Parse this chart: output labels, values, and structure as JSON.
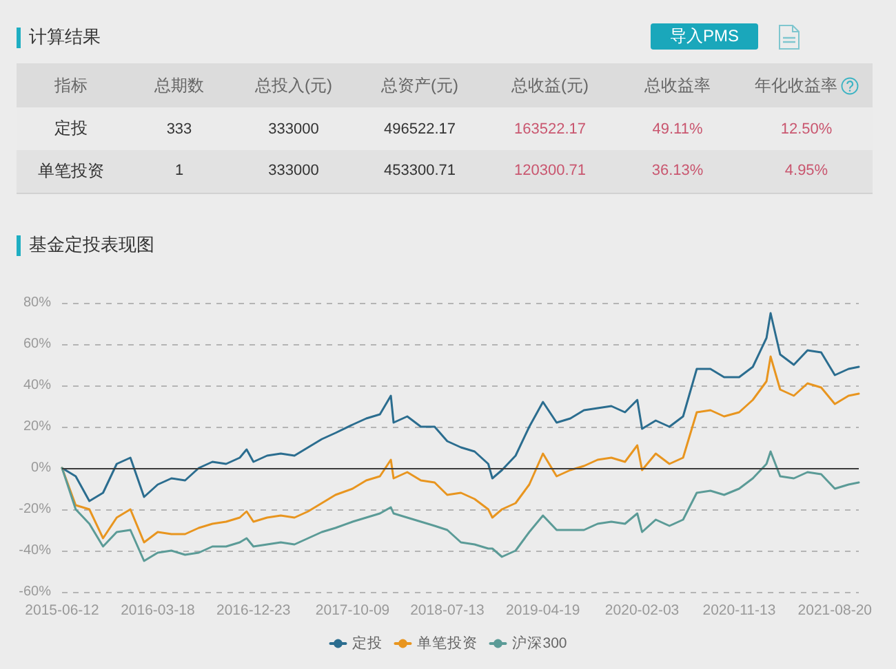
{
  "chart_data": [
    {
      "type": "other",
      "title": "计算结果",
      "annotations": [
        "导入PMS"
      ],
      "ylabel": "指标",
      "categories": [
        "总期数",
        "总投入(元)",
        "总资产(元)",
        "总收益(元)",
        "总收益率",
        "年化收益率"
      ],
      "y_categories": [
        "定投",
        "单笔投资"
      ],
      "cell_labels": [
        [
          "333",
          "333000",
          "496522.17",
          "163522.17",
          "49.11%",
          "12.50%"
        ],
        [
          "1",
          "333000",
          "453300.71",
          "120300.71",
          "36.13%",
          "4.95%"
        ]
      ]
    },
    {
      "type": "line",
      "title": "基金定投表现图",
      "x": [
        "2015-06-12",
        "2015-07-22",
        "2015-08-31",
        "2015-10-10",
        "2015-11-19",
        "2015-12-29",
        "2016-02-07",
        "2016-03-18",
        "2016-04-27",
        "2016-06-06",
        "2016-07-16",
        "2016-08-25",
        "2016-10-04",
        "2016-11-13",
        "2016-12-03",
        "2016-12-23",
        "2017-02-01",
        "2017-03-13",
        "2017-04-22",
        "2017-06-01",
        "2017-07-11",
        "2017-08-20",
        "2017-10-09",
        "2017-11-18",
        "2017-12-28",
        "2018-01-29",
        "2018-02-06",
        "2018-03-18",
        "2018-04-27",
        "2018-06-06",
        "2018-07-13",
        "2018-08-22",
        "2018-10-01",
        "2018-11-10",
        "2018-11-22",
        "2018-12-20",
        "2019-01-29",
        "2019-03-10",
        "2019-04-19",
        "2019-05-29",
        "2019-07-08",
        "2019-08-17",
        "2019-09-26",
        "2019-11-05",
        "2019-12-15",
        "2020-01-20",
        "2020-02-03",
        "2020-03-14",
        "2020-04-23",
        "2020-06-02",
        "2020-07-12",
        "2020-08-21",
        "2020-09-30",
        "2020-11-13",
        "2020-12-23",
        "2021-02-01",
        "2021-02-13",
        "2021-03-13",
        "2021-04-22",
        "2021-06-01",
        "2021-07-11",
        "2021-08-20",
        "2021-09-29",
        "2021-10-29"
      ],
      "series": [
        {
          "name": "定投",
          "color": "#2b6d8f",
          "values": [
            0,
            -4,
            -16,
            -12,
            2,
            5,
            -14,
            -8,
            -5,
            -6,
            0,
            3,
            2,
            5,
            9,
            3,
            6,
            7,
            6,
            10,
            14,
            17,
            21,
            24,
            26,
            35,
            22,
            25,
            20,
            20,
            13,
            10,
            8,
            2,
            -5,
            -1,
            6,
            20,
            32,
            22,
            24,
            28,
            29,
            30,
            27,
            33,
            19,
            23,
            20,
            25,
            48,
            48,
            44,
            44,
            49,
            63,
            75,
            55,
            50,
            57,
            56,
            45,
            48,
            49
          ]
        },
        {
          "name": "单笔投资",
          "color": "#e8951f",
          "values": [
            0,
            -18,
            -20,
            -34,
            -24,
            -20,
            -36,
            -31,
            -32,
            -32,
            -29,
            -27,
            -26,
            -24,
            -21,
            -26,
            -24,
            -23,
            -24,
            -21,
            -17,
            -13,
            -10,
            -6,
            -4,
            4,
            -5,
            -2,
            -6,
            -7,
            -13,
            -12,
            -15,
            -20,
            -24,
            -20,
            -17,
            -8,
            7,
            -4,
            -1,
            1,
            4,
            5,
            3,
            11,
            -1,
            7,
            2,
            5,
            27,
            28,
            25,
            27,
            33,
            42,
            54,
            38,
            35,
            41,
            39,
            31,
            35,
            36
          ]
        },
        {
          "name": "沪深300",
          "color": "#5b9b97",
          "values": [
            0,
            -20,
            -27,
            -38,
            -31,
            -30,
            -45,
            -41,
            -40,
            -42,
            -41,
            -38,
            -38,
            -36,
            -34,
            -38,
            -37,
            -36,
            -37,
            -34,
            -31,
            -29,
            -26,
            -24,
            -22,
            -19,
            -22,
            -24,
            -26,
            -28,
            -30,
            -36,
            -37,
            -39,
            -39,
            -43,
            -40,
            -31,
            -23,
            -30,
            -30,
            -30,
            -27,
            -26,
            -27,
            -22,
            -31,
            -25,
            -28,
            -25,
            -12,
            -11,
            -13,
            -10,
            -5,
            2,
            8,
            -4,
            -5,
            -2,
            -3,
            -10,
            -8,
            -7
          ]
        }
      ],
      "xlim": [
        "2015-06-12",
        "2021-10-29"
      ],
      "xticks": [
        "2015-06-12",
        "2016-03-18",
        "2016-12-23",
        "2017-10-09",
        "2018-07-13",
        "2019-04-19",
        "2020-02-03",
        "2020-11-13",
        "2021-08-20"
      ],
      "ylim": [
        -60,
        80
      ],
      "yticks": [
        {
          "value": -60,
          "label": "-60%"
        },
        {
          "value": -40,
          "label": "-40%"
        },
        {
          "value": -20,
          "label": "-20%"
        },
        {
          "value": 0,
          "label": "0%"
        },
        {
          "value": 20,
          "label": "20%"
        },
        {
          "value": 40,
          "label": "40%"
        },
        {
          "value": 60,
          "label": "60%"
        },
        {
          "value": 80,
          "label": "80%"
        }
      ],
      "ref_lines": [
        {
          "axis": "y",
          "value": 0,
          "color": "#3a3a3a"
        }
      ],
      "grid": "y",
      "legend": "bottom",
      "line_style": "solid"
    }
  ]
}
